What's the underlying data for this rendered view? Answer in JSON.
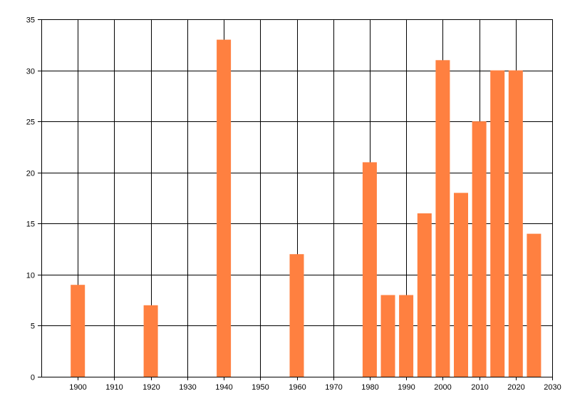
{
  "chart_data": {
    "type": "bar",
    "title": "",
    "xlabel": "",
    "ylabel": "",
    "bar_color": "#ff8040",
    "grid": true,
    "xlim": [
      1890,
      2030
    ],
    "ylim": [
      0,
      35
    ],
    "xticks": [
      1900,
      1910,
      1920,
      1930,
      1940,
      1950,
      1960,
      1970,
      1980,
      1990,
      2000,
      2010,
      2020,
      2030
    ],
    "yticks": [
      0,
      5,
      10,
      15,
      20,
      25,
      30,
      35
    ],
    "x": [
      1900,
      1920,
      1940,
      1960,
      1980,
      1985,
      1990,
      1995,
      2000,
      2005,
      2010,
      2015,
      2020,
      2025
    ],
    "values": [
      9,
      7,
      33,
      12,
      21,
      8,
      8,
      16,
      31,
      18,
      25,
      30,
      30,
      14
    ]
  }
}
